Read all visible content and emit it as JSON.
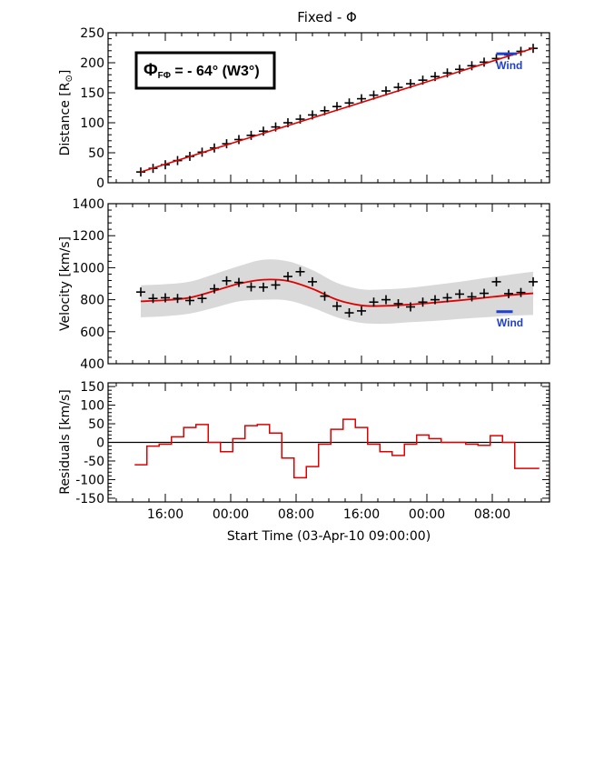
{
  "colors": {
    "axis": "#000000",
    "fit": "#e00000",
    "band": "#d9d9d9",
    "wind": "#1f3fd0",
    "residual": "#e00000"
  },
  "chart_data": [
    {
      "id": "distance",
      "type": "scatter",
      "title": "Fixed - Φ",
      "ylabel": "Distance [R⊙]",
      "ylabel_main": "Distance [R",
      "ylabel_sub": "⊙",
      "ylabel_close": "]",
      "ylim": [
        0,
        250
      ],
      "yticks": [
        0,
        50,
        100,
        150,
        200,
        250
      ],
      "xlim_hours": [
        0,
        54
      ],
      "annotation": {
        "phi": "Φ",
        "sub": "FΦ",
        "text": " = - 64° (W3°)"
      },
      "series": [
        {
          "name": "observations",
          "marker": "plus",
          "x": [
            4,
            5.5,
            7,
            8.5,
            10,
            11.5,
            13,
            14.5,
            16,
            17.5,
            19,
            20.5,
            22,
            23.5,
            25,
            26.5,
            28,
            29.5,
            31,
            32.5,
            34,
            35.5,
            37,
            38.5,
            40,
            41.5,
            43,
            44.5,
            46,
            47.5,
            49,
            50.5,
            52
          ],
          "y": [
            18,
            24,
            30,
            37,
            44,
            51,
            58,
            65,
            72,
            79,
            86,
            93,
            100,
            106,
            113,
            120,
            127,
            133,
            140,
            146,
            153,
            159,
            165,
            171,
            177,
            183,
            189,
            195,
            201,
            207,
            213,
            219,
            224
          ]
        },
        {
          "name": "fit",
          "type": "line",
          "x": [
            4,
            52
          ],
          "y": [
            18,
            224
          ]
        },
        {
          "name": "Wind",
          "type": "segment",
          "x": [
            47.5,
            50
          ],
          "y": [
            215,
            215
          ]
        }
      ],
      "wind_label": "Wind"
    },
    {
      "id": "velocity",
      "type": "scatter",
      "ylabel": "Velocity [km/s]",
      "ylim": [
        400,
        1400
      ],
      "yticks": [
        400,
        600,
        800,
        1000,
        1200,
        1400
      ],
      "xlim_hours": [
        0,
        54
      ],
      "series": [
        {
          "name": "observations",
          "marker": "plus",
          "x": [
            4,
            5.5,
            7,
            8.5,
            10,
            11.5,
            13,
            14.5,
            16,
            17.5,
            19,
            20.5,
            22,
            23.5,
            25,
            26.5,
            28,
            29.5,
            31,
            32.5,
            34,
            35.5,
            37,
            38.5,
            40,
            41.5,
            43,
            44.5,
            46,
            47.5,
            49,
            50.5,
            52
          ],
          "y": [
            848,
            808,
            812,
            808,
            795,
            808,
            868,
            918,
            908,
            880,
            878,
            892,
            945,
            975,
            912,
            822,
            760,
            718,
            730,
            785,
            800,
            775,
            755,
            785,
            800,
            812,
            835,
            818,
            840,
            912,
            838,
            845,
            912
          ]
        },
        {
          "name": "fit",
          "type": "line",
          "x": [
            4,
            7,
            10,
            13,
            16,
            19,
            22,
            25,
            28,
            31,
            34,
            37,
            40,
            43,
            46,
            49,
            52
          ],
          "y": [
            790,
            797,
            813,
            855,
            900,
            925,
            917,
            868,
            800,
            764,
            762,
            770,
            782,
            796,
            812,
            828,
            840
          ]
        },
        {
          "name": "uncertainty",
          "type": "area",
          "x": [
            4,
            7,
            10,
            13,
            16,
            19,
            22,
            25,
            28,
            31,
            34,
            37,
            40,
            43,
            46,
            49,
            52
          ],
          "upper": [
            890,
            897,
            913,
            960,
            1010,
            1050,
            1040,
            985,
            905,
            865,
            865,
            875,
            893,
            912,
            935,
            955,
            975
          ],
          "lower": [
            690,
            697,
            713,
            750,
            790,
            800,
            795,
            750,
            690,
            655,
            650,
            660,
            668,
            680,
            690,
            700,
            705
          ]
        },
        {
          "name": "Wind",
          "type": "segment",
          "x": [
            47.5,
            49.5
          ],
          "y": [
            725,
            725
          ]
        }
      ],
      "wind_label": "Wind"
    },
    {
      "id": "residuals",
      "type": "line",
      "ylabel": "Residuals [km/s]",
      "ylim": [
        -160,
        160
      ],
      "yticks": [
        -150,
        -100,
        -50,
        0,
        50,
        100,
        150
      ],
      "xlim_hours": [
        0,
        54
      ],
      "xlabel": "Start Time (03-Apr-10 09:00:00)",
      "xtick_hours": [
        7,
        15,
        23,
        31,
        39,
        47
      ],
      "xtick_labels": [
        "16:00",
        "00:00",
        "08:00",
        "16:00",
        "00:00",
        "08:00"
      ],
      "series": [
        {
          "name": "residuals",
          "type": "step",
          "x": [
            4,
            5.5,
            7,
            8.5,
            10,
            11.5,
            13,
            14.5,
            16,
            17.5,
            19,
            20.5,
            22,
            23.5,
            25,
            26.5,
            28,
            29.5,
            31,
            32.5,
            34,
            35.5,
            37,
            38.5,
            40,
            41.5,
            43,
            44.5,
            46,
            47.5,
            49,
            50.5,
            52
          ],
          "y": [
            -60,
            -10,
            -5,
            15,
            40,
            48,
            0,
            -25,
            10,
            45,
            48,
            25,
            -42,
            -95,
            -65,
            -5,
            35,
            62,
            40,
            -5,
            -25,
            -35,
            -5,
            20,
            10,
            0,
            0,
            -5,
            -8,
            18,
            0,
            -70,
            -70
          ]
        }
      ]
    }
  ]
}
